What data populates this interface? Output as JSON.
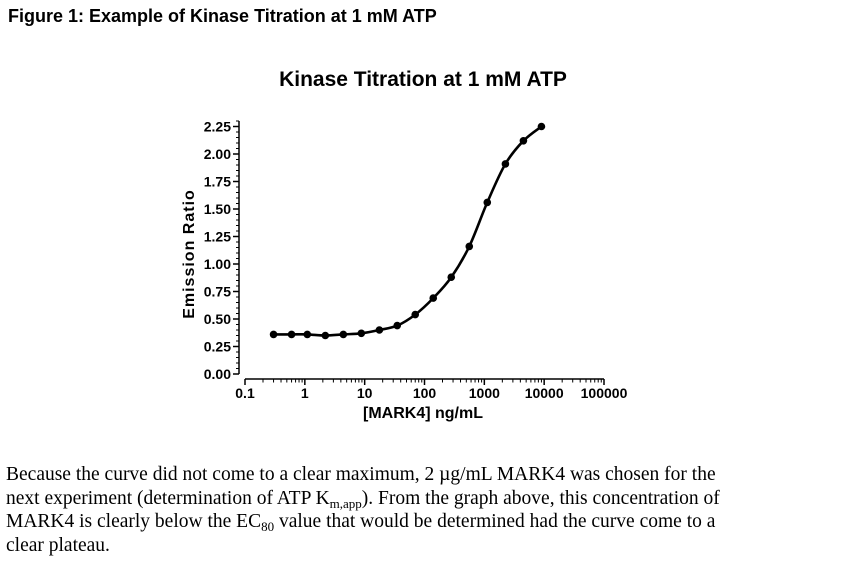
{
  "figure_heading": "Figure 1: Example of Kinase Titration at 1 mM ATP",
  "chart_data": {
    "type": "scatter",
    "title": "Kinase Titration at 1 mM ATP",
    "xlabel": "[MARK4] ng/mL",
    "ylabel": "Emission Ratio",
    "x_scale": "log",
    "xlim": [
      0.1,
      100000
    ],
    "ylim": [
      0,
      2.3
    ],
    "x_ticks": [
      "0.1",
      "1",
      "10",
      "100",
      "1000",
      "10000",
      "100000"
    ],
    "y_ticks": [
      "0.00",
      "0.25",
      "0.50",
      "0.75",
      "1.00",
      "1.25",
      "1.50",
      "1.75",
      "2.00",
      "2.25"
    ],
    "grid": false,
    "series": [
      {
        "x": [
          0.3,
          0.6,
          1.1,
          2.2,
          4.4,
          8.8,
          17.6,
          35,
          70,
          140,
          280,
          560,
          1120,
          2250,
          4500,
          9000
        ],
        "y": [
          0.36,
          0.36,
          0.36,
          0.35,
          0.36,
          0.37,
          0.4,
          0.44,
          0.54,
          0.69,
          0.88,
          1.16,
          1.56,
          1.91,
          2.12,
          2.25
        ],
        "fit_curve": true
      }
    ]
  },
  "body_text": {
    "p1": "Because the curve did not come to a clear maximum, 2 µg/mL MARK4 was chosen for the",
    "p2a": "next experiment (determination of ATP K",
    "p2_sub": "m,app",
    "p2b": ").  From the graph above, this concentration of",
    "p3a": "MARK4 is clearly below the EC",
    "p3_sub": "80",
    "p3b": " value that would be determined had the curve come to a",
    "p4": "clear plateau."
  }
}
